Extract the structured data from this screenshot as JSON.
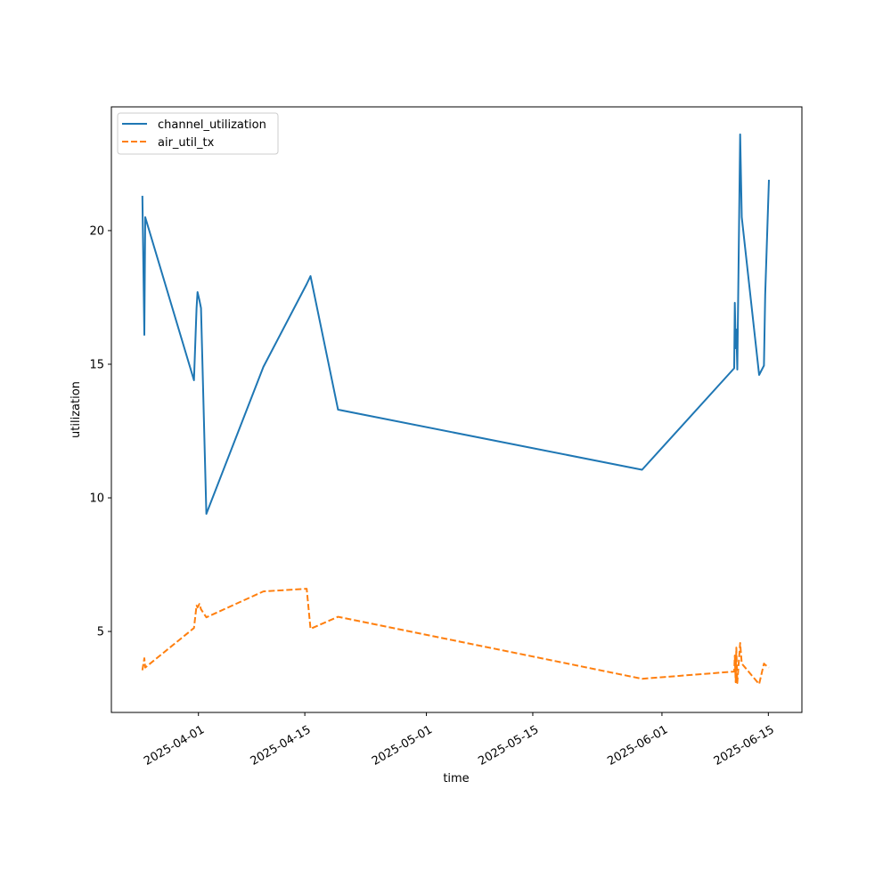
{
  "chart_data": {
    "type": "line",
    "title": "",
    "xlabel": "time",
    "ylabel": "utilization",
    "xlim": [
      "2025-03-20T13:00",
      "2025-06-19T10:00"
    ],
    "ylim": [
      1.97,
      24.63
    ],
    "grid": false,
    "legend_position": "upper-left",
    "x_ticks": [
      "2025-04-01",
      "2025-04-15",
      "2025-05-01",
      "2025-05-15",
      "2025-06-01",
      "2025-06-15"
    ],
    "y_ticks": [
      5,
      10,
      15,
      20
    ],
    "x": [
      "2025-03-24T15:00",
      "2025-03-24T21:00",
      "2025-03-25T00:00",
      "2025-03-31T10:00",
      "2025-03-31T18:00",
      "2025-03-31T21:00",
      "2025-04-01T03:00",
      "2025-04-01T08:00",
      "2025-04-02T01:00",
      "2025-04-09T13:00",
      "2025-04-15T06:00",
      "2025-04-15T18:00",
      "2025-04-19T09:00",
      "2025-05-29T09:00",
      "2025-06-10T12:00",
      "2025-06-10T14:00",
      "2025-06-10T17:00",
      "2025-06-10T19:00",
      "2025-06-10T22:00",
      "2025-06-11T07:00",
      "2025-06-11T12:00",
      "2025-06-13T19:00",
      "2025-06-14T10:00",
      "2025-06-14T14:00",
      "2025-06-15T02:00"
    ],
    "series": [
      {
        "name": "channel_utilization",
        "color": "#1f77b4",
        "style": "solid",
        "values": [
          21.3,
          16.1,
          20.5,
          14.4,
          17.1,
          17.7,
          17.4,
          17.1,
          9.4,
          14.9,
          18.0,
          18.3,
          13.3,
          11.05,
          14.85,
          17.3,
          15.6,
          16.3,
          14.8,
          23.6,
          20.5,
          14.6,
          14.95,
          17.6,
          21.9
        ]
      },
      {
        "name": "air_util_tx",
        "color": "#ff7f0e",
        "style": "dashed",
        "values": [
          3.55,
          4.0,
          3.65,
          5.13,
          5.97,
          5.9,
          6.03,
          5.83,
          5.53,
          6.5,
          6.6,
          5.1,
          5.55,
          3.23,
          3.5,
          4.1,
          3.1,
          4.4,
          3.07,
          4.57,
          3.8,
          3.03,
          3.8,
          3.75,
          3.65
        ]
      }
    ]
  }
}
